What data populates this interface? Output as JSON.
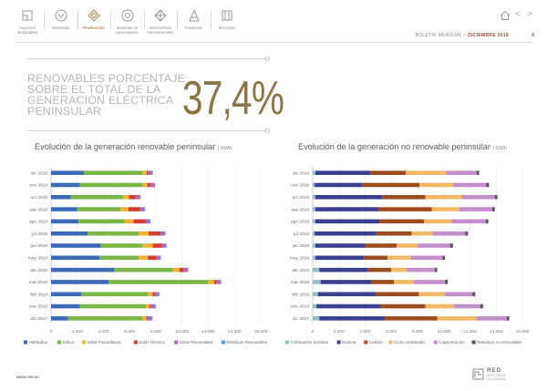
{
  "nav": {
    "items": [
      {
        "label": "Aspectos\ndestacados",
        "icon": "highlights-icon",
        "active": false
      },
      {
        "label": "Demanda",
        "icon": "demand-icon",
        "active": false
      },
      {
        "label": "Producción",
        "icon": "production-icon",
        "active": true
      },
      {
        "label": "Sistemas no\npeninsulares",
        "icon": "non-peninsular-icon",
        "active": false
      },
      {
        "label": "Intercambios\ninternacionales",
        "icon": "exchanges-icon",
        "active": false
      },
      {
        "label": "Transporte",
        "icon": "transport-icon",
        "active": false
      },
      {
        "label": "Mercados",
        "icon": "markets-icon",
        "active": false
      }
    ],
    "arrows": "< >"
  },
  "header": {
    "bulletin_prefix": "BOLETÍN MENSUAL –",
    "bulletin_month": "DICIEMBRE 2018",
    "page_number": "6"
  },
  "headline": {
    "title": "RENOVABLES PORCENTAJE SOBRE EL TOTAL DE LA GENERACIÓN ELÉCTRICA PENINSULAR",
    "value": "37,4%"
  },
  "footer": {
    "url": "www.ree.es",
    "logo_title": "RED",
    "logo_subtitle_1": "ELÉCTRICA",
    "logo_subtitle_2": "DE ESPAÑA"
  },
  "chart_data": [
    {
      "type": "bar",
      "orientation": "horizontal-stacked",
      "title": "Evolución de la generación renovable peninsular",
      "unit": "GWh",
      "categories": [
        "dic 2018",
        "nov 2018",
        "oct 2018",
        "sep 2018",
        "ago 2018",
        "jul 2018",
        "jun 2018",
        "may 2018",
        "abr 2018",
        "mar 2018",
        "feb 2018",
        "ene 2018",
        "dic 2017"
      ],
      "xlim": [
        0,
        16000
      ],
      "xticks": [
        "0",
        "2.000",
        "4.000",
        "6.000",
        "8.000",
        "10.000",
        "12.000",
        "14.000",
        "16.000"
      ],
      "series": [
        {
          "name": "Hidráulica",
          "color": "#3b6bb5",
          "values": [
            2500,
            2200,
            1500,
            2000,
            2100,
            2800,
            3800,
            3700,
            4800,
            4400,
            2300,
            2200,
            1300
          ]
        },
        {
          "name": "Eólica",
          "color": "#7ab648",
          "values": [
            4500,
            4800,
            4000,
            3300,
            3500,
            3900,
            3200,
            3000,
            4500,
            7600,
            5100,
            5000,
            5700
          ]
        },
        {
          "name": "Solar Fotovoltaica",
          "color": "#f2b233",
          "values": [
            300,
            350,
            450,
            600,
            700,
            750,
            750,
            700,
            500,
            450,
            350,
            300,
            280
          ]
        },
        {
          "name": "Solar Térmica",
          "color": "#d63c2f",
          "values": [
            100,
            200,
            500,
            900,
            900,
            900,
            700,
            600,
            300,
            150,
            150,
            100,
            90
          ]
        },
        {
          "name": "Otras Renovables",
          "color": "#b066b8",
          "values": [
            300,
            310,
            320,
            310,
            320,
            320,
            300,
            310,
            300,
            320,
            300,
            320,
            300
          ]
        },
        {
          "name": "Residuos Renovables",
          "color": "#4a9fd8",
          "values": [
            70,
            70,
            70,
            70,
            70,
            70,
            70,
            70,
            70,
            70,
            70,
            70,
            70
          ]
        }
      ]
    },
    {
      "type": "bar",
      "orientation": "horizontal-stacked",
      "title": "Evolución de la generación no renovable peninsular",
      "unit": "GWh",
      "categories": [
        "dic 2018",
        "nov 2018",
        "oct 2018",
        "sep 2018",
        "ago 2018",
        "jul 2018",
        "jun 2018",
        "may 2018",
        "abr 2018",
        "mar 2018",
        "feb 2018",
        "ene 2018",
        "dic 2017"
      ],
      "xlim": [
        0,
        16000
      ],
      "xticks": [
        "0",
        "2.000",
        "4.000",
        "6.000",
        "8.000",
        "10.000",
        "12.000",
        "14.000",
        "16.000"
      ],
      "series": [
        {
          "name": "Turbinación bombeo",
          "color": "#8fc0c2",
          "values": [
            200,
            150,
            200,
            200,
            200,
            150,
            200,
            200,
            500,
            600,
            400,
            300,
            500
          ]
        },
        {
          "name": "Nuclear",
          "color": "#3a3f8f",
          "values": [
            4200,
            3600,
            5100,
            4800,
            4900,
            4700,
            3800,
            3700,
            3700,
            3900,
            4400,
            4900,
            5000
          ]
        },
        {
          "name": "Carbón",
          "color": "#9c4d1f",
          "values": [
            2700,
            4400,
            3300,
            4100,
            3400,
            2700,
            2400,
            1800,
            1800,
            1700,
            3300,
            3400,
            4000
          ]
        },
        {
          "name": "Ciclo combinado",
          "color": "#f2b866",
          "values": [
            3100,
            2600,
            2800,
            2100,
            2100,
            1600,
            1600,
            1800,
            1200,
            1500,
            2000,
            2200,
            3000
          ]
        },
        {
          "name": "Cogeneración",
          "color": "#c48dcc",
          "values": [
            2300,
            2500,
            2500,
            2500,
            2600,
            2500,
            2500,
            2400,
            2100,
            2400,
            2100,
            2000,
            2300
          ]
        },
        {
          "name": "Residuos no renovables",
          "color": "#555555",
          "values": [
            200,
            200,
            200,
            200,
            200,
            200,
            200,
            200,
            200,
            200,
            200,
            200,
            200
          ]
        }
      ]
    }
  ]
}
